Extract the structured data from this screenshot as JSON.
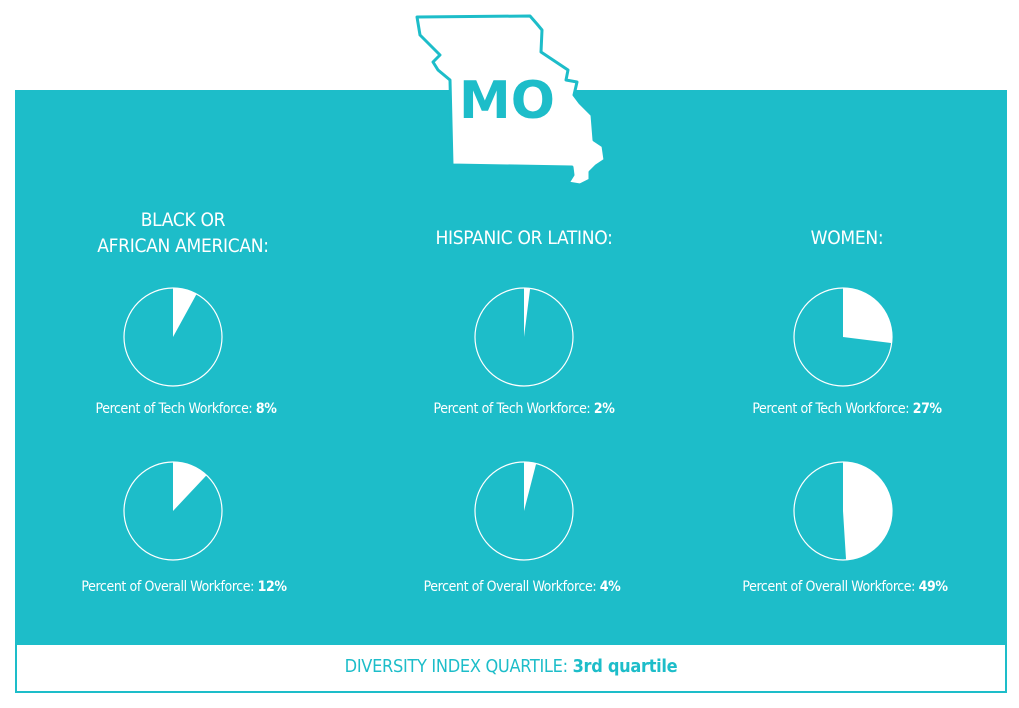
{
  "state_abbr": "MO",
  "colors": {
    "teal": "#1dbdc9",
    "white": "#ffffff"
  },
  "chart_data": {
    "type": "pie",
    "groups": [
      {
        "title_line1": "BLACK OR",
        "title_line2": "AFRICAN AMERICAN:",
        "tech_label": "Percent of Tech Workforce:",
        "tech_value": 8,
        "tech_text": "8%",
        "overall_label": "Percent of Overall Workforce:",
        "overall_value": 12,
        "overall_text": "12%"
      },
      {
        "title_line1": "",
        "title_line2": "HISPANIC OR LATINO:",
        "tech_label": "Percent of Tech Workforce:",
        "tech_value": 2,
        "tech_text": "2%",
        "overall_label": "Percent of Overall Workforce:",
        "overall_value": 4,
        "overall_text": "4%"
      },
      {
        "title_line1": "",
        "title_line2": "WOMEN:",
        "tech_label": "Percent of Tech Workforce:",
        "tech_value": 27,
        "tech_text": "27%",
        "overall_label": "Percent of Overall Workforce:",
        "overall_value": 49,
        "overall_text": "49%"
      }
    ]
  },
  "footer": {
    "label": "DIVERSITY INDEX QUARTILE:",
    "value": "3rd quartile"
  }
}
